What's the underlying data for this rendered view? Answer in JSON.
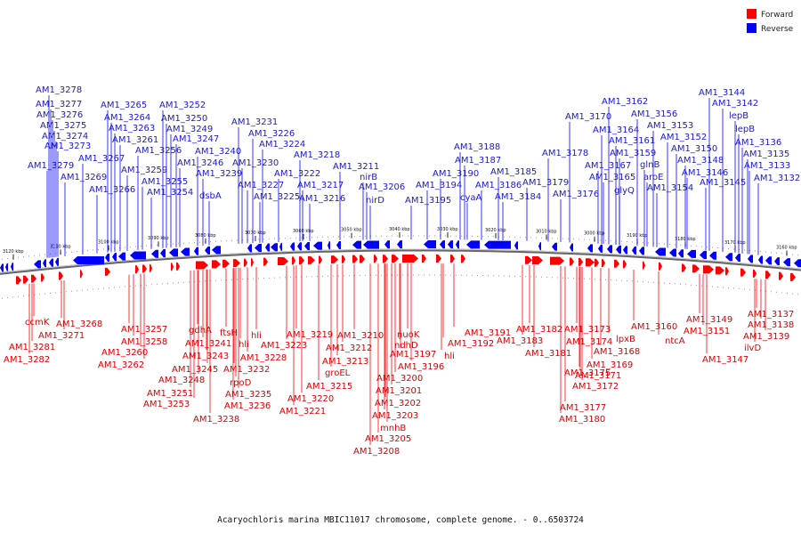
{
  "legend": {
    "items": [
      {
        "label": "Forward",
        "color": "#ff0000"
      },
      {
        "label": "Reverse",
        "color": "#0000ff"
      }
    ]
  },
  "caption": "Acaryochloris marina MBIC11017 chromosome, complete genome. - 0..6503724",
  "colors": {
    "forward": "#ff0000",
    "reverse": "#0000ff",
    "axis": "#7a7a7a"
  },
  "ticks": [
    "3120 kbp",
    "3110 kbp",
    "3100 kbp",
    "3090 kbp",
    "3080 kbp",
    "3070 kbp",
    "3060 kbp",
    "3050 kbp",
    "3040 kbp",
    "3030 kbp",
    "3020 kbp",
    "3010 kbp",
    "3000 kbp",
    "3190 kbp",
    "3180 kbp",
    "3170 kbp",
    "3160 kbp"
  ],
  "reverse_labels": [
    "AM1_3278",
    "AM1_3277",
    "AM1_3276",
    "AM1_3275",
    "AM1_3274",
    "AM1_3273",
    "AM1_3279",
    "AM1_3269",
    "AM1_3267",
    "AM1_3266",
    "AM1_3265",
    "AM1_3264",
    "AM1_3263",
    "AM1_3261",
    "AM1_3259",
    "AM1_3256",
    "AM1_3255",
    "AM1_3254",
    "AM1_3252",
    "AM1_3250",
    "AM1_3249",
    "AM1_3247",
    "AM1_3246",
    "AM1_3240",
    "AM1_3239",
    "dsbA",
    "AM1_3231",
    "AM1_3226",
    "AM1_3224",
    "AM1_3230",
    "AM1_3227",
    "AM1_3225",
    "AM1_3222",
    "AM1_3218",
    "AM1_3217",
    "AM1_3216",
    "AM1_3211",
    "nirB",
    "AM1_3206",
    "nirD",
    "AM1_3195",
    "AM1_3194",
    "AM1_3190",
    "AM1_3188",
    "AM1_3187",
    "AM1_3186",
    "cyaA",
    "AM1_3185",
    "AM1_3184",
    "AM1_3179",
    "AM1_3178",
    "AM1_3176",
    "AM1_3170",
    "AM1_3162",
    "AM1_3164",
    "AM1_3161",
    "AM1_3159",
    "AM1_3167",
    "AM1_3165",
    "glyQ",
    "glnB",
    "aroE",
    "AM1_3156",
    "AM1_3153",
    "AM1_3152",
    "AM1_3150",
    "AM1_3148",
    "AM1_3146",
    "AM1_3154",
    "AM1_3145",
    "AM1_3144",
    "AM1_3142",
    "lepB",
    "lepB",
    "AM1_3136",
    "AM1_3135",
    "AM1_3133",
    "AM1_3132"
  ],
  "forward_labels": [
    "ccmK",
    "AM1_3281",
    "AM1_3282",
    "AM1_3268",
    "AM1_3271",
    "AM1_3257",
    "AM1_3258",
    "AM1_3260",
    "AM1_3262",
    "gdhA",
    "AM1_3241",
    "AM1_3243",
    "AM1_3245",
    "AM1_3248",
    "AM1_3251",
    "AM1_3253",
    "ftsH",
    "hli",
    "hli",
    "AM1_3228",
    "AM1_3232",
    "rpoD",
    "AM1_3235",
    "AM1_3236",
    "AM1_3238",
    "AM1_3219",
    "AM1_3223",
    "AM1_3220",
    "AM1_3221",
    "AM1_3210",
    "AM1_3212",
    "AM1_3213",
    "groEL",
    "AM1_3215",
    "nuoK",
    "ndhD",
    "AM1_3197",
    "AM1_3196",
    "AM1_3200",
    "AM1_3201",
    "AM1_3202",
    "AM1_3203",
    "mnhB",
    "AM1_3205",
    "AM1_3208",
    "AM1_3191",
    "AM1_3192",
    "hli",
    "AM1_3182",
    "AM1_3183",
    "AM1_3181",
    "AM1_3173",
    "AM1_3174",
    "AM1_3175",
    "AM1_3177",
    "AM1_3180",
    "AM1_3171",
    "AM1_3172",
    "AM1_3168",
    "AM1_3169",
    "lpxB",
    "AM1_3160",
    "ntcA",
    "AM1_3149",
    "AM1_3151",
    "AM1_3147",
    "AM1_3137",
    "AM1_3138",
    "AM1_3139",
    "ilvD"
  ]
}
